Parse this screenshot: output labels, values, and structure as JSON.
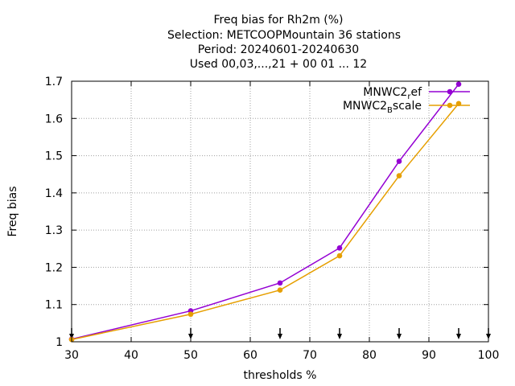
{
  "chart_data": {
    "type": "line",
    "title_lines": [
      "Freq bias  for Rh2m (%)",
      "Selection: METCOOPMountain     36 stations",
      "Period: 20240601-20240630",
      "Used 00,03,...,21 + 00 01 ... 12"
    ],
    "xlabel": "thresholds %",
    "ylabel": "Freq bias",
    "xlim": [
      30,
      100
    ],
    "ylim": [
      1.0,
      1.7
    ],
    "xticks": [
      30,
      40,
      50,
      60,
      70,
      80,
      90,
      100
    ],
    "yticks": [
      1.0,
      1.1,
      1.2,
      1.3,
      1.4,
      1.5,
      1.6,
      1.7
    ],
    "grid": true,
    "legend_position": "top-right",
    "threshold_markers": [
      30,
      50,
      65,
      75,
      85,
      95,
      100
    ],
    "series": [
      {
        "name_base": "MNWC2",
        "name_sub": "r",
        "name_rest": "ef",
        "color": "#9400d3",
        "x": [
          30,
          50,
          65,
          75,
          85,
          95
        ],
        "y": [
          1.007,
          1.083,
          1.158,
          1.252,
          1.485,
          1.692
        ]
      },
      {
        "name_base": "MNWC2",
        "name_sub": "B",
        "name_rest": "scale",
        "color": "#e69f00",
        "x": [
          30,
          50,
          65,
          75,
          85,
          95
        ],
        "y": [
          1.006,
          1.074,
          1.139,
          1.231,
          1.446,
          1.64
        ]
      }
    ]
  }
}
